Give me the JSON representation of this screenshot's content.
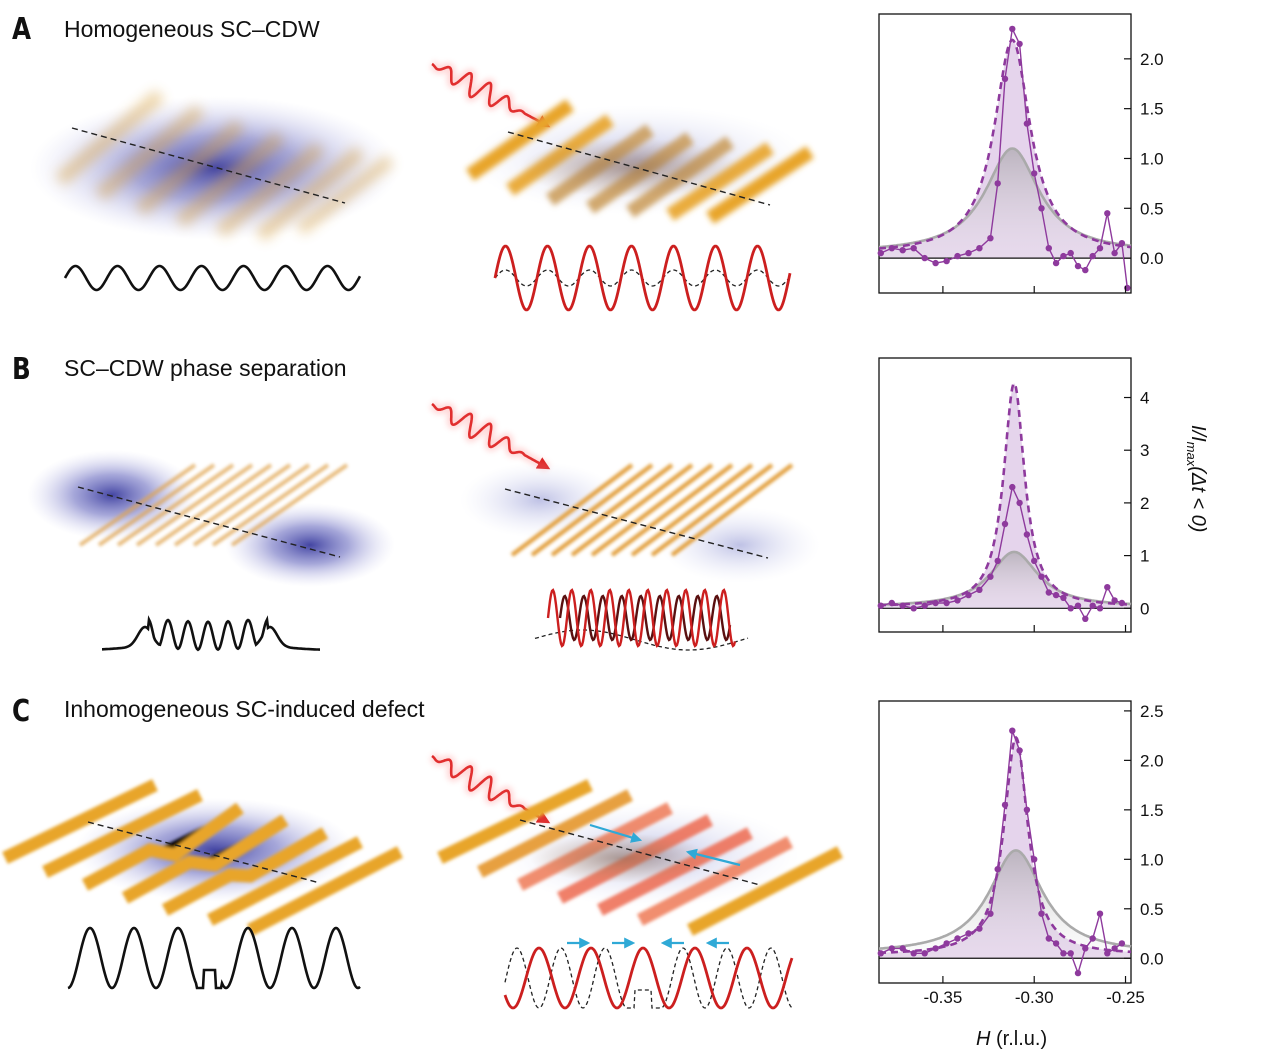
{
  "panels": [
    {
      "letter": "A",
      "title": "Homogeneous SC–CDW"
    },
    {
      "letter": "B",
      "title": "SC–CDW phase separation"
    },
    {
      "letter": "C",
      "title": "Inhomogeneous SC-induced defect"
    }
  ],
  "colors": {
    "scatter": "#8e3a9d",
    "fill": "#dcc6e6",
    "gray_fit": "#aaaaaa",
    "cdw": "#e8a52a",
    "sc": "#3c3ca0",
    "pump": "#d81e1e",
    "arrow": "#2fa9d6"
  },
  "axes": {
    "ylabel_italic": "I/I",
    "ylabel_sub": "max",
    "ylabel_rest": "(Δt < 0)",
    "xlabel_italic": "H",
    "xlabel_rest": "(r.l.u.)"
  },
  "chart_data": [
    {
      "type": "line",
      "panel": "A",
      "xlim": [
        -0.385,
        -0.247
      ],
      "ylim": [
        -0.35,
        2.45
      ],
      "yticks": [
        0.0,
        0.5,
        1.0,
        1.5,
        2.0
      ],
      "ytick_labels": [
        "0.0",
        "0.5",
        "1.0",
        "1.5",
        "2.0"
      ],
      "xticks": [
        -0.35,
        -0.3,
        -0.25
      ],
      "xtick_labels": [],
      "center": -0.312,
      "series": [
        {
          "name": "data",
          "style": "points",
          "x": [
            -0.384,
            -0.378,
            -0.372,
            -0.366,
            -0.36,
            -0.354,
            -0.348,
            -0.342,
            -0.336,
            -0.33,
            -0.324,
            -0.32,
            -0.316,
            -0.312,
            -0.308,
            -0.304,
            -0.3,
            -0.296,
            -0.292,
            -0.288,
            -0.284,
            -0.28,
            -0.276,
            -0.272,
            -0.268,
            -0.264,
            -0.26,
            -0.256,
            -0.252,
            -0.249
          ],
          "y": [
            0.05,
            0.1,
            0.08,
            0.1,
            0.0,
            -0.05,
            -0.03,
            0.02,
            0.05,
            0.1,
            0.2,
            0.75,
            1.8,
            2.3,
            2.15,
            1.35,
            0.85,
            0.5,
            0.1,
            -0.05,
            0.02,
            0.05,
            -0.08,
            -0.12,
            0.02,
            0.1,
            0.45,
            0.05,
            0.15,
            -0.3
          ]
        },
        {
          "name": "dashed fit",
          "style": "dashed",
          "amplitude": 2.15,
          "width": 0.012,
          "offset": 0.04
        },
        {
          "name": "gray fit",
          "style": "gray",
          "amplitude": 1.05,
          "width": 0.018,
          "offset": 0.05
        }
      ]
    },
    {
      "type": "line",
      "panel": "B",
      "xlim": [
        -0.385,
        -0.247
      ],
      "ylim": [
        -0.45,
        4.75
      ],
      "yticks": [
        0,
        1,
        2,
        3,
        4
      ],
      "ytick_labels": [
        "0",
        "1",
        "2",
        "3",
        "4"
      ],
      "xticks": [
        -0.35,
        -0.3,
        -0.25
      ],
      "xtick_labels": [],
      "center": -0.311,
      "series": [
        {
          "name": "data",
          "style": "points",
          "x": [
            -0.384,
            -0.378,
            -0.372,
            -0.366,
            -0.36,
            -0.354,
            -0.348,
            -0.342,
            -0.336,
            -0.33,
            -0.324,
            -0.32,
            -0.316,
            -0.312,
            -0.308,
            -0.304,
            -0.3,
            -0.296,
            -0.292,
            -0.288,
            -0.284,
            -0.28,
            -0.276,
            -0.272,
            -0.268,
            -0.264,
            -0.26,
            -0.256,
            -0.252
          ],
          "y": [
            0.05,
            0.1,
            0.05,
            0.0,
            0.05,
            0.1,
            0.1,
            0.15,
            0.25,
            0.35,
            0.6,
            0.9,
            1.6,
            2.3,
            2.0,
            1.4,
            0.9,
            0.6,
            0.3,
            0.25,
            0.2,
            0.0,
            0.05,
            -0.2,
            0.05,
            0.0,
            0.4,
            0.15,
            0.1
          ]
        },
        {
          "name": "dashed fit",
          "style": "dashed",
          "amplitude": 4.25,
          "width": 0.007,
          "offset": 0.02
        },
        {
          "name": "gray fit",
          "style": "gray",
          "amplitude": 1.05,
          "width": 0.016,
          "offset": 0.02
        }
      ]
    },
    {
      "type": "line",
      "panel": "C",
      "xlim": [
        -0.385,
        -0.247
      ],
      "ylim": [
        -0.25,
        2.6
      ],
      "yticks": [
        0.0,
        0.5,
        1.0,
        1.5,
        2.0,
        2.5
      ],
      "ytick_labels": [
        "0.0",
        "0.5",
        "1.0",
        "1.5",
        "2.0",
        "2.5"
      ],
      "xticks": [
        -0.35,
        -0.3,
        -0.25
      ],
      "xtick_labels": [
        "-0.35",
        "-0.30",
        "-0.25"
      ],
      "center": -0.31,
      "series": [
        {
          "name": "data",
          "style": "points",
          "x": [
            -0.384,
            -0.378,
            -0.372,
            -0.366,
            -0.36,
            -0.354,
            -0.348,
            -0.342,
            -0.336,
            -0.33,
            -0.324,
            -0.32,
            -0.316,
            -0.312,
            -0.308,
            -0.304,
            -0.3,
            -0.296,
            -0.292,
            -0.288,
            -0.284,
            -0.28,
            -0.276,
            -0.272,
            -0.268,
            -0.264,
            -0.26,
            -0.256,
            -0.252
          ],
          "y": [
            0.05,
            0.1,
            0.1,
            0.05,
            0.05,
            0.1,
            0.15,
            0.2,
            0.25,
            0.3,
            0.45,
            0.9,
            1.55,
            2.3,
            2.1,
            1.5,
            1.0,
            0.45,
            0.2,
            0.15,
            0.05,
            0.05,
            -0.15,
            0.1,
            0.2,
            0.45,
            0.05,
            0.1,
            0.15
          ]
        },
        {
          "name": "dashed fit",
          "style": "dashed",
          "amplitude": 2.2,
          "width": 0.008,
          "offset": 0.03
        },
        {
          "name": "gray fit",
          "style": "gray",
          "amplitude": 1.05,
          "width": 0.018,
          "offset": 0.04
        }
      ]
    }
  ]
}
